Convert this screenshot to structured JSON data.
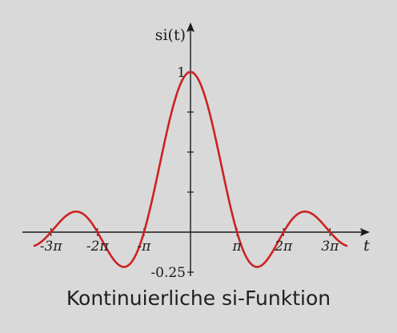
{
  "caption": "Kontinuierliche si-Funktion",
  "chart_data": {
    "type": "line",
    "function": "si(t) = sin(t)/t",
    "ylabel": "si(t)",
    "xlabel": "t",
    "xlim": [
      -10.0,
      10.4
    ],
    "ylim": [
      -0.25,
      1.0
    ],
    "x_ticks": [
      {
        "value": -9.4248,
        "label": "-3π"
      },
      {
        "value": -6.2832,
        "label": "-2π"
      },
      {
        "value": -3.1416,
        "label": "-π"
      },
      {
        "value": 3.1416,
        "label": "π"
      },
      {
        "value": 6.2832,
        "label": "2π"
      },
      {
        "value": 9.4248,
        "label": "3π"
      }
    ],
    "y_ticks": [
      {
        "value": 1,
        "label": "1"
      },
      {
        "value": 0.75,
        "label": ""
      },
      {
        "value": 0.5,
        "label": ""
      },
      {
        "value": 0.25,
        "label": ""
      },
      {
        "value": -0.25,
        "label": "-0.25"
      }
    ],
    "series": [
      {
        "color": "#cc2222",
        "x": [
          -10,
          -9.4248,
          -8.5,
          -7.7253,
          -7,
          -6.2832,
          -5.5,
          -4.4934,
          -3.5,
          -3.1416,
          -2.5,
          -2,
          -1.5,
          -1,
          -0.5,
          0,
          0.5,
          1,
          1.5,
          2,
          2.5,
          3.1416,
          3.5,
          4.4934,
          5.5,
          6.2832,
          7,
          7.7253,
          8.5,
          9.4248,
          10
        ],
        "y": [
          -0.054,
          0,
          0.094,
          0.128,
          0.094,
          0,
          -0.128,
          -0.217,
          -0.1,
          0,
          0.239,
          0.455,
          0.665,
          0.841,
          0.959,
          1.0,
          0.959,
          0.841,
          0.665,
          0.455,
          0.239,
          0,
          -0.1,
          -0.217,
          -0.128,
          0,
          0.094,
          0.128,
          0.094,
          0,
          -0.054
        ]
      }
    ]
  }
}
